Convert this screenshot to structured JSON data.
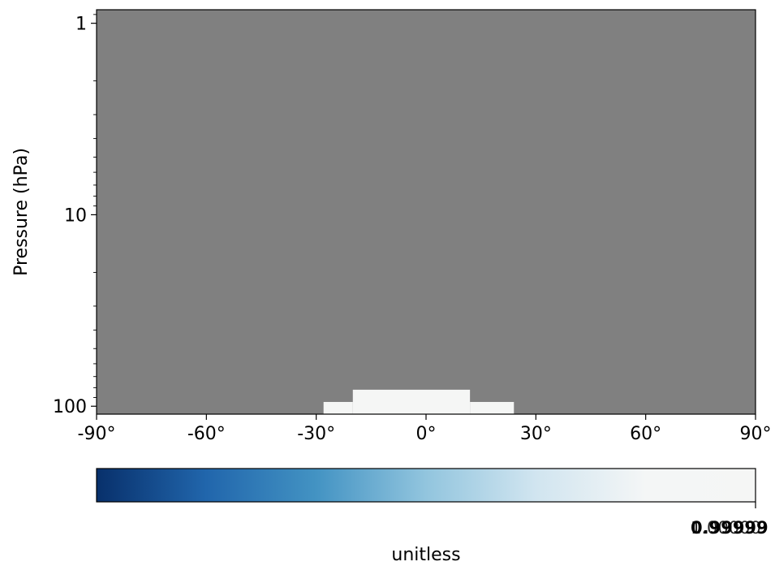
{
  "chart_data": {
    "type": "heatmap",
    "title": "",
    "xlabel": "",
    "ylabel": "Pressure (hPa)",
    "x_ticks": [
      -90,
      -60,
      -30,
      0,
      30,
      60,
      90
    ],
    "x_tick_labels": [
      "-90°",
      "-60°",
      "-30°",
      "0°",
      "30°",
      "60°",
      "90°"
    ],
    "xlim": [
      -90,
      90
    ],
    "y_scale": "log",
    "y_inverted": true,
    "ylim": [
      110,
      0.85
    ],
    "y_ticks": [
      1,
      10,
      100
    ],
    "y_tick_labels": [
      "1",
      "10",
      "100"
    ],
    "background_color": "#808080",
    "cells": [
      {
        "lat": [
          -28,
          -20
        ],
        "pressure": [
          95,
          110
        ],
        "color": "#f5f6f5"
      },
      {
        "lat": [
          -20,
          12
        ],
        "pressure": [
          82,
          110
        ],
        "color": "#f5f6f5"
      },
      {
        "lat": [
          12,
          24
        ],
        "pressure": [
          95,
          110
        ],
        "color": "#f5f6f5"
      }
    ],
    "colorbar": {
      "label": "unitless",
      "tick_labels": [
        "0.99999",
        "1.00000"
      ],
      "stops": [
        "#08306b",
        "#2166ac",
        "#4393c3",
        "#92c5de",
        "#d1e5f0",
        "#f4f6f6",
        "#f5f6f5"
      ]
    }
  }
}
